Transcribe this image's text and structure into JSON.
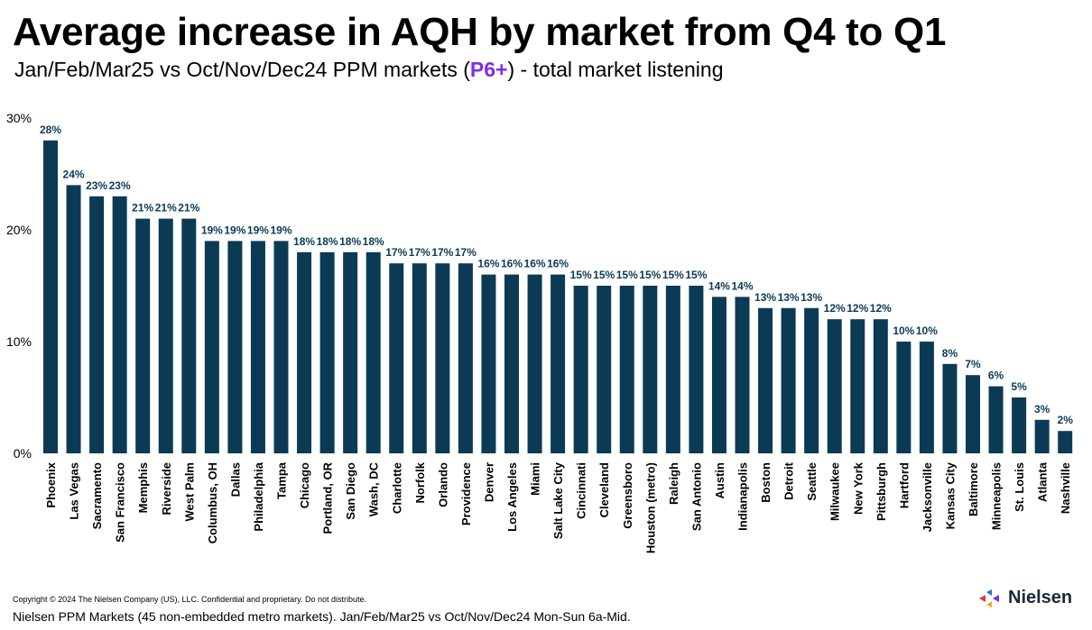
{
  "header": {
    "title": "Average increase in AQH by market from Q4 to Q1",
    "subtitle_before": "Jan/Feb/Mar25 vs Oct/Nov/Dec24 PPM markets (",
    "subtitle_accent": "P6+",
    "subtitle_after": ") - total market listening"
  },
  "colors": {
    "bar": "#0b3a55",
    "accent": "#7a2fe8",
    "label": "#0b3a55"
  },
  "chart_data": {
    "type": "bar",
    "categories": [
      "Phoenix",
      "Las Vegas",
      "Sacramento",
      "San Francisco",
      "Memphis",
      "Riverside",
      "West Palm",
      "Columbus, OH",
      "Dallas",
      "Philadelphia",
      "Tampa",
      "Chicago",
      "Portland, OR",
      "San Diego",
      "Wash, DC",
      "Charlotte",
      "Norfolk",
      "Orlando",
      "Providence",
      "Denver",
      "Los Angeles",
      "Miami",
      "Salt Lake City",
      "Cincinnati",
      "Cleveland",
      "Greensboro",
      "Houston (metro)",
      "Raleigh",
      "San Antonio",
      "Austin",
      "Indianapolis",
      "Boston",
      "Detroit",
      "Seattle",
      "Milwaukee",
      "New York",
      "Pittsburgh",
      "Hartford",
      "Jacksonville",
      "Kansas City",
      "Baltimore",
      "Minneapolis",
      "St. Louis",
      "Atlanta",
      "Nashville"
    ],
    "values": [
      28,
      24,
      23,
      23,
      21,
      21,
      21,
      19,
      19,
      19,
      19,
      18,
      18,
      18,
      18,
      17,
      17,
      17,
      17,
      16,
      16,
      16,
      16,
      15,
      15,
      15,
      15,
      15,
      15,
      14,
      14,
      13,
      13,
      13,
      12,
      12,
      12,
      10,
      10,
      8,
      7,
      6,
      5,
      3,
      2
    ],
    "value_labels": [
      "28%",
      "24%",
      "23%",
      "23%",
      "21%",
      "21%",
      "21%",
      "19%",
      "19%",
      "19%",
      "19%",
      "18%",
      "18%",
      "18%",
      "18%",
      "17%",
      "17%",
      "17%",
      "17%",
      "16%",
      "16%",
      "16%",
      "16%",
      "15%",
      "15%",
      "15%",
      "15%",
      "15%",
      "15%",
      "14%",
      "14%",
      "13%",
      "13%",
      "13%",
      "12%",
      "12%",
      "12%",
      "10%",
      "10%",
      "8%",
      "7%",
      "6%",
      "5%",
      "3%",
      "2%"
    ],
    "ylim": [
      0,
      30
    ],
    "yticks": [
      0,
      10,
      20,
      30
    ],
    "ytick_labels": [
      "0%",
      "10%",
      "20%",
      "30%"
    ],
    "grid": false,
    "legend": "none"
  },
  "footer": {
    "copyright": "Copyright © 2024 The Nielsen Company (US), LLC. Confidential and proprietary. Do not distribute.",
    "note": "Nielsen PPM Markets (45 non-embedded metro markets). Jan/Feb/Mar25 vs Oct/Nov/Dec24 Mon-Sun 6a-Mid.",
    "brand": "Nielsen"
  }
}
